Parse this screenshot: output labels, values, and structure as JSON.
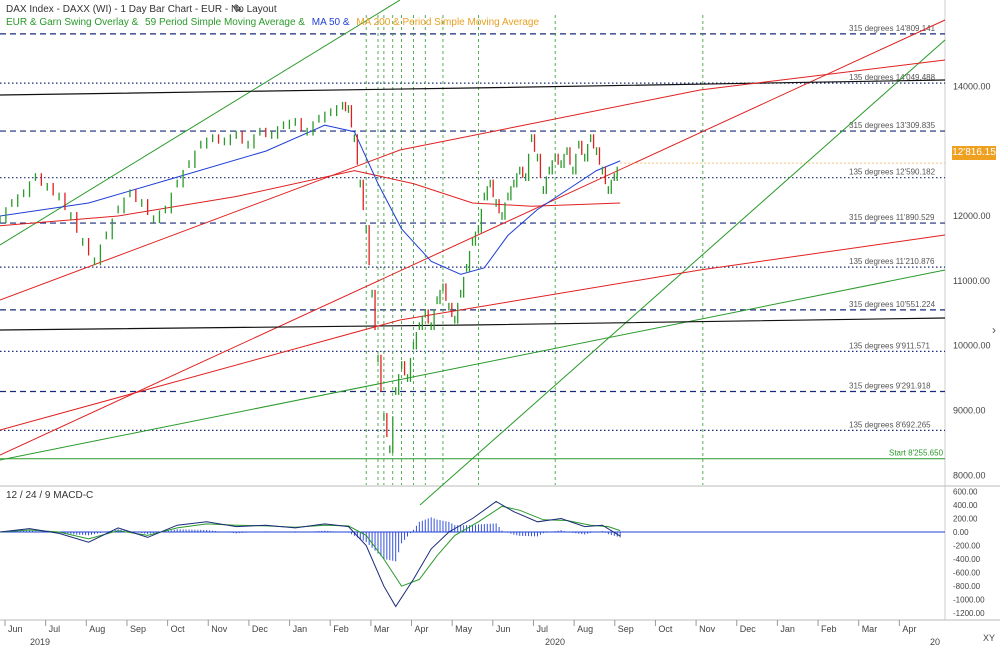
{
  "header": {
    "title": "DAX Index - DAXX (WI) - 1 Day Bar Chart - EUR - No Layout",
    "overlay_garn": "EUR & Garn Swing Overlay &",
    "overlay_ma59": "59 Period Simple Moving Average &",
    "overlay_ma50": "MA 50 &",
    "overlay_ma200": "MA 200 & Period Simple Moving Average"
  },
  "macd_label": "12 / 24 / 9 MACD-C",
  "last_price_tag": "12'816.15",
  "corner_label": "XY",
  "colors": {
    "bull": "#2a9a2a",
    "bear": "#e02020",
    "ma50": "#1f3fd6",
    "ma200": "#e8a020",
    "garn_red": "#e02020",
    "garn_green": "#2a9a2a",
    "garn_black": "#111111",
    "level_line": "#1a2a7a",
    "vline": "#2a9a2a",
    "macd_hist": "#1f3fd6"
  },
  "chart_data": [
    {
      "type": "bar",
      "title": "",
      "description_note": "",
      "x_axis": {
        "months": [
          "Jun",
          "Jul",
          "Aug",
          "Sep",
          "Oct",
          "Nov",
          "Dec",
          "Jan",
          "Feb",
          "Mar",
          "Apr",
          "May",
          "Jun",
          "Jul",
          "Aug",
          "Sep",
          "Oct",
          "Nov",
          "Dec",
          "Jan",
          "Feb",
          "Mar",
          "Apr"
        ],
        "years": [
          "2019",
          "2020"
        ],
        "right_edge_label": "20"
      },
      "y_axis": {
        "ticks": [
          "14000.00",
          "13000.00",
          "12000.00",
          "11000.00",
          "10000.00",
          "9000.00",
          "8000.00"
        ],
        "tick_values": [
          14000,
          13000,
          12000,
          11000,
          10000,
          9000,
          8000
        ],
        "range": [
          7850,
          15100
        ]
      },
      "levels": [
        {
          "label": "315  degrees  14'809.141",
          "value": 14809.141,
          "style": "dashed"
        },
        {
          "label": "135  degrees  14'049.488",
          "value": 14049.488,
          "style": "dotted"
        },
        {
          "label": "315  degrees  13'309.835",
          "value": 13309.835,
          "style": "dashed"
        },
        {
          "label": "135  degrees  12'590.182",
          "value": 12590.182,
          "style": "dotted"
        },
        {
          "label": "315  degrees  11'890.529",
          "value": 11890.529,
          "style": "dashed"
        },
        {
          "label": "135  degrees  11'210.876",
          "value": 11210.876,
          "style": "dotted"
        },
        {
          "label": "315  degrees  10'551.224",
          "value": 10551.224,
          "style": "dashed"
        },
        {
          "label": "135  degrees  9'911.571",
          "value": 9911.571,
          "style": "dotted"
        },
        {
          "label": "315  degrees  9'291.918",
          "value": 9291.918,
          "style": "dashed"
        },
        {
          "label": "135  degrees  8'692.265",
          "value": 8692.265,
          "style": "dotted"
        }
      ],
      "start_line": {
        "label": "Start 8'255.650",
        "value": 8255.65
      },
      "price_series": [
        {
          "t": 0,
          "c": 11950
        },
        {
          "t": 4,
          "c": 12200
        },
        {
          "t": 8,
          "c": 12350
        },
        {
          "t": 12,
          "c": 12600
        },
        {
          "t": 16,
          "c": 12450
        },
        {
          "t": 20,
          "c": 12300
        },
        {
          "t": 24,
          "c": 12000
        },
        {
          "t": 28,
          "c": 11600
        },
        {
          "t": 32,
          "c": 11300
        },
        {
          "t": 36,
          "c": 11700
        },
        {
          "t": 40,
          "c": 12100
        },
        {
          "t": 44,
          "c": 12350
        },
        {
          "t": 48,
          "c": 12200
        },
        {
          "t": 52,
          "c": 11950
        },
        {
          "t": 56,
          "c": 12100
        },
        {
          "t": 60,
          "c": 12500
        },
        {
          "t": 64,
          "c": 12800
        },
        {
          "t": 68,
          "c": 13100
        },
        {
          "t": 72,
          "c": 13200
        },
        {
          "t": 76,
          "c": 13150
        },
        {
          "t": 80,
          "c": 13250
        },
        {
          "t": 84,
          "c": 13100
        },
        {
          "t": 88,
          "c": 13300
        },
        {
          "t": 92,
          "c": 13250
        },
        {
          "t": 96,
          "c": 13400
        },
        {
          "t": 100,
          "c": 13450
        },
        {
          "t": 104,
          "c": 13300
        },
        {
          "t": 108,
          "c": 13500
        },
        {
          "t": 112,
          "c": 13600
        },
        {
          "t": 116,
          "c": 13700
        },
        {
          "t": 118,
          "c": 13650
        },
        {
          "t": 120,
          "c": 13200
        },
        {
          "t": 122,
          "c": 12500
        },
        {
          "t": 124,
          "c": 11800
        },
        {
          "t": 126,
          "c": 10800
        },
        {
          "t": 128,
          "c": 9800
        },
        {
          "t": 130,
          "c": 8900
        },
        {
          "t": 132,
          "c": 8400
        },
        {
          "t": 134,
          "c": 9300
        },
        {
          "t": 136,
          "c": 9700
        },
        {
          "t": 138,
          "c": 9500
        },
        {
          "t": 140,
          "c": 10000
        },
        {
          "t": 142,
          "c": 10300
        },
        {
          "t": 144,
          "c": 10500
        },
        {
          "t": 146,
          "c": 10300
        },
        {
          "t": 148,
          "c": 10700
        },
        {
          "t": 150,
          "c": 10900
        },
        {
          "t": 152,
          "c": 10600
        },
        {
          "t": 154,
          "c": 10400
        },
        {
          "t": 156,
          "c": 10800
        },
        {
          "t": 158,
          "c": 11200
        },
        {
          "t": 160,
          "c": 11600
        },
        {
          "t": 162,
          "c": 11800
        },
        {
          "t": 164,
          "c": 12300
        },
        {
          "t": 166,
          "c": 12500
        },
        {
          "t": 168,
          "c": 12200
        },
        {
          "t": 170,
          "c": 12000
        },
        {
          "t": 172,
          "c": 12300
        },
        {
          "t": 174,
          "c": 12500
        },
        {
          "t": 176,
          "c": 12700
        },
        {
          "t": 178,
          "c": 12600
        },
        {
          "t": 180,
          "c": 13200
        },
        {
          "t": 182,
          "c": 12900
        },
        {
          "t": 184,
          "c": 12400
        },
        {
          "t": 186,
          "c": 12700
        },
        {
          "t": 188,
          "c": 12900
        },
        {
          "t": 190,
          "c": 12800
        },
        {
          "t": 192,
          "c": 13000
        },
        {
          "t": 194,
          "c": 12700
        },
        {
          "t": 196,
          "c": 13100
        },
        {
          "t": 198,
          "c": 12900
        },
        {
          "t": 200,
          "c": 13200
        },
        {
          "t": 202,
          "c": 13000
        },
        {
          "t": 204,
          "c": 12700
        },
        {
          "t": 206,
          "c": 12400
        },
        {
          "t": 208,
          "c": 12600
        },
        {
          "t": 210,
          "c": 12800
        }
      ],
      "ma50": [
        {
          "t": 0,
          "c": 12000
        },
        {
          "t": 30,
          "c": 12200
        },
        {
          "t": 60,
          "c": 12600
        },
        {
          "t": 90,
          "c": 13000
        },
        {
          "t": 110,
          "c": 13400
        },
        {
          "t": 120,
          "c": 13300
        },
        {
          "t": 128,
          "c": 12500
        },
        {
          "t": 136,
          "c": 11800
        },
        {
          "t": 146,
          "c": 11300
        },
        {
          "t": 156,
          "c": 11100
        },
        {
          "t": 164,
          "c": 11200
        },
        {
          "t": 172,
          "c": 11700
        },
        {
          "t": 182,
          "c": 12100
        },
        {
          "t": 192,
          "c": 12400
        },
        {
          "t": 202,
          "c": 12700
        },
        {
          "t": 210,
          "c": 12850
        }
      ],
      "ma200": [
        {
          "t": 0,
          "c": 11850
        },
        {
          "t": 40,
          "c": 12000
        },
        {
          "t": 80,
          "c": 12300
        },
        {
          "t": 120,
          "c": 12700
        },
        {
          "t": 140,
          "c": 12500
        },
        {
          "t": 160,
          "c": 12200
        },
        {
          "t": 180,
          "c": 12150
        },
        {
          "t": 210,
          "c": 12200
        }
      ]
    },
    {
      "type": "area",
      "title": "12 / 24 / 9 MACD-C",
      "y_axis": {
        "ticks": [
          "600.00",
          "400.00",
          "200.00",
          "0.00",
          "-200.00",
          "-400.00",
          "-600.00",
          "-800.00",
          "-1000.00",
          "-1200.00"
        ],
        "tick_values": [
          600,
          400,
          200,
          0,
          -200,
          -400,
          -600,
          -800,
          -1000,
          -1200
        ],
        "range": [
          -1300,
          650
        ]
      },
      "macd": [
        {
          "t": 0,
          "v": 0
        },
        {
          "t": 10,
          "v": 50
        },
        {
          "t": 20,
          "v": -20
        },
        {
          "t": 30,
          "v": -150
        },
        {
          "t": 40,
          "v": 60
        },
        {
          "t": 50,
          "v": -80
        },
        {
          "t": 60,
          "v": 100
        },
        {
          "t": 70,
          "v": 150
        },
        {
          "t": 80,
          "v": 80
        },
        {
          "t": 90,
          "v": 100
        },
        {
          "t": 100,
          "v": 60
        },
        {
          "t": 110,
          "v": 120
        },
        {
          "t": 118,
          "v": 80
        },
        {
          "t": 124,
          "v": -200
        },
        {
          "t": 130,
          "v": -800
        },
        {
          "t": 134,
          "v": -1100
        },
        {
          "t": 140,
          "v": -700
        },
        {
          "t": 146,
          "v": -250
        },
        {
          "t": 152,
          "v": 0
        },
        {
          "t": 160,
          "v": 200
        },
        {
          "t": 168,
          "v": 450
        },
        {
          "t": 174,
          "v": 300
        },
        {
          "t": 182,
          "v": 150
        },
        {
          "t": 190,
          "v": 200
        },
        {
          "t": 198,
          "v": 80
        },
        {
          "t": 204,
          "v": 100
        },
        {
          "t": 210,
          "v": -60
        }
      ],
      "signal": [
        {
          "t": 0,
          "v": 0
        },
        {
          "t": 10,
          "v": 30
        },
        {
          "t": 20,
          "v": 0
        },
        {
          "t": 30,
          "v": -100
        },
        {
          "t": 40,
          "v": 20
        },
        {
          "t": 50,
          "v": -50
        },
        {
          "t": 60,
          "v": 60
        },
        {
          "t": 70,
          "v": 120
        },
        {
          "t": 80,
          "v": 100
        },
        {
          "t": 90,
          "v": 90
        },
        {
          "t": 100,
          "v": 70
        },
        {
          "t": 110,
          "v": 100
        },
        {
          "t": 118,
          "v": 90
        },
        {
          "t": 124,
          "v": -50
        },
        {
          "t": 130,
          "v": -400
        },
        {
          "t": 136,
          "v": -800
        },
        {
          "t": 142,
          "v": -700
        },
        {
          "t": 148,
          "v": -350
        },
        {
          "t": 154,
          "v": -50
        },
        {
          "t": 162,
          "v": 150
        },
        {
          "t": 170,
          "v": 380
        },
        {
          "t": 176,
          "v": 320
        },
        {
          "t": 184,
          "v": 180
        },
        {
          "t": 192,
          "v": 170
        },
        {
          "t": 200,
          "v": 100
        },
        {
          "t": 206,
          "v": 80
        },
        {
          "t": 210,
          "v": 20
        }
      ]
    }
  ]
}
